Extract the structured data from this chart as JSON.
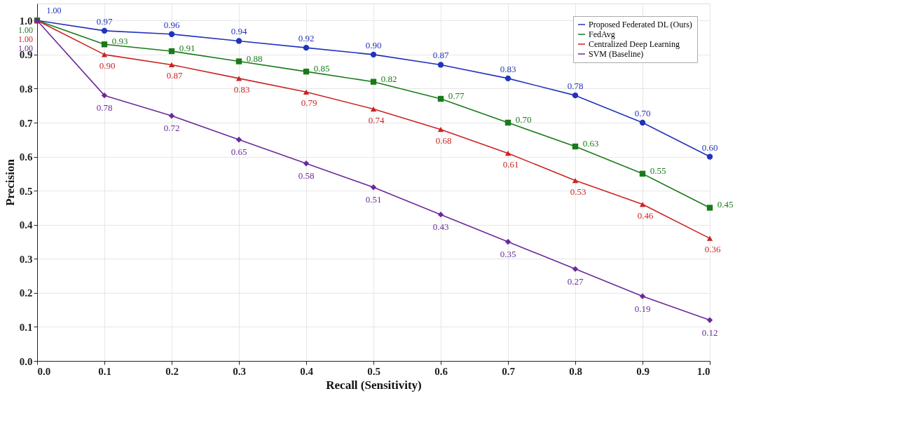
{
  "chart_data": {
    "type": "line",
    "xlabel": "Recall (Sensitivity)",
    "ylabel": "Precision",
    "x": [
      0.0,
      0.1,
      0.2,
      0.3,
      0.4,
      0.5,
      0.6,
      0.7,
      0.8,
      0.9,
      1.0
    ],
    "series": [
      {
        "name": "Proposed Federated DL (Ours)",
        "color": "#2233bb",
        "marker": "circle",
        "values": [
          1.0,
          0.97,
          0.96,
          0.94,
          0.92,
          0.9,
          0.87,
          0.83,
          0.78,
          0.7,
          0.6
        ],
        "value_labels": [
          "1.00",
          "0.97",
          "0.96",
          "0.94",
          "0.92",
          "0.90",
          "0.87",
          "0.83",
          "0.78",
          "0.70",
          "0.60"
        ]
      },
      {
        "name": "FedAvg",
        "color": "#1a7a1a",
        "marker": "square",
        "values": [
          1.0,
          0.93,
          0.91,
          0.88,
          0.85,
          0.82,
          0.77,
          0.7,
          0.63,
          0.55,
          0.45
        ],
        "value_labels": [
          "1.00",
          "0.93",
          "0.91",
          "0.88",
          "0.85",
          "0.82",
          "0.77",
          "0.70",
          "0.63",
          "0.55",
          "0.45"
        ]
      },
      {
        "name": "Centralized Deep Learning",
        "color": "#cc2222",
        "marker": "triangle",
        "values": [
          1.0,
          0.9,
          0.87,
          0.83,
          0.79,
          0.74,
          0.68,
          0.61,
          0.53,
          0.46,
          0.36
        ],
        "value_labels": [
          "1.00",
          "0.90",
          "0.87",
          "0.83",
          "0.79",
          "0.74",
          "0.68",
          "0.61",
          "0.53",
          "0.46",
          "0.36"
        ]
      },
      {
        "name": "SVM (Baseline)",
        "color": "#6a2a9a",
        "marker": "diamond",
        "values": [
          1.0,
          0.78,
          0.72,
          0.65,
          0.58,
          0.51,
          0.43,
          0.35,
          0.27,
          0.19,
          0.12
        ],
        "value_labels": [
          "1.00",
          "0.78",
          "0.72",
          "0.65",
          "0.58",
          "0.51",
          "0.43",
          "0.35",
          "0.27",
          "0.19",
          "0.12"
        ]
      }
    ],
    "xlim": [
      0.0,
      1.0
    ],
    "xticks": [
      {
        "value": 0.0,
        "label": "0.0"
      },
      0.1,
      0.2,
      0.3,
      0.4,
      0.5,
      0.6,
      0.7,
      0.8,
      0.9,
      {
        "value": 1.0,
        "label": "1.0"
      }
    ],
    "ylim": [
      0.0,
      1.05
    ],
    "yticks": [
      {
        "value": 0.0,
        "label": "0.0"
      },
      0.1,
      0.2,
      0.3,
      0.4,
      0.5,
      0.6,
      0.7,
      0.8,
      0.9,
      {
        "value": 1.0,
        "label": "1.0"
      }
    ],
    "grid": true,
    "legend": "top right",
    "line_style": "solid"
  }
}
